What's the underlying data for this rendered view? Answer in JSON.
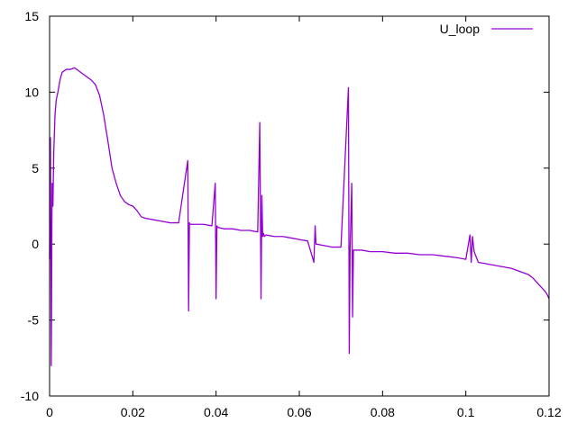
{
  "chart_data": {
    "type": "line",
    "title": "",
    "xlabel": "",
    "ylabel": "",
    "xlim": [
      0,
      0.12
    ],
    "ylim": [
      -10,
      15
    ],
    "xticks": [
      0,
      0.02,
      0.04,
      0.06,
      0.08,
      0.1,
      0.12
    ],
    "xtick_labels": [
      "0",
      "0.02",
      "0.04",
      "0.06",
      "0.08",
      "0.1",
      "0.12"
    ],
    "yticks": [
      -10,
      -5,
      0,
      5,
      10,
      15
    ],
    "ytick_labels": [
      "-10",
      "-5",
      "0",
      "5",
      "10",
      "15"
    ],
    "grid": false,
    "legend_position": "top-right",
    "series": [
      {
        "name": "U_loop",
        "color": "#9400d3",
        "x": [
          0,
          0.0002,
          0.0004,
          0.0006,
          0.0008,
          0.001,
          0.0013,
          0.0016,
          0.002,
          0.0025,
          0.003,
          0.004,
          0.005,
          0.006,
          0.007,
          0.008,
          0.009,
          0.01,
          0.011,
          0.012,
          0.013,
          0.014,
          0.015,
          0.016,
          0.017,
          0.018,
          0.019,
          0.02,
          0.021,
          0.022,
          0.023,
          0.025,
          0.027,
          0.029,
          0.031,
          0.0332,
          0.0334,
          0.0336,
          0.0338,
          0.035,
          0.037,
          0.039,
          0.0398,
          0.04,
          0.0402,
          0.0404,
          0.042,
          0.044,
          0.046,
          0.048,
          0.05,
          0.0505,
          0.0508,
          0.051,
          0.0512,
          0.0514,
          0.0516,
          0.052,
          0.054,
          0.056,
          0.058,
          0.06,
          0.062,
          0.0635,
          0.0638,
          0.064,
          0.066,
          0.068,
          0.07,
          0.0718,
          0.072,
          0.0722,
          0.0726,
          0.0728,
          0.073,
          0.075,
          0.077,
          0.08,
          0.083,
          0.086,
          0.089,
          0.092,
          0.095,
          0.098,
          0.1,
          0.101,
          0.1013,
          0.1016,
          0.102,
          0.103,
          0.105,
          0.107,
          0.109,
          0.111,
          0.113,
          0.115,
          0.116,
          0.117,
          0.118,
          0.119,
          0.1195,
          0.12
        ],
        "values": [
          -1,
          7,
          -8,
          4,
          2.5,
          6,
          8.5,
          9.5,
          10,
          10.8,
          11.3,
          11.5,
          11.5,
          11.6,
          11.4,
          11.2,
          11.0,
          10.8,
          10.5,
          9.8,
          8.5,
          6.8,
          5.0,
          4.0,
          3.2,
          2.8,
          2.6,
          2.5,
          2.2,
          1.8,
          1.7,
          1.6,
          1.5,
          1.4,
          1.4,
          5.5,
          -4.4,
          1.4,
          1.3,
          1.3,
          1.3,
          1.2,
          4.0,
          -3.6,
          1.2,
          1.1,
          1.0,
          1.0,
          0.9,
          0.9,
          0.8,
          8.0,
          -3.6,
          3.2,
          0.5,
          0.7,
          0.5,
          0.6,
          0.5,
          0.5,
          0.4,
          0.3,
          0.2,
          -1.2,
          1.2,
          0.0,
          -0.1,
          -0.2,
          -0.2,
          10.3,
          -7.2,
          -0.3,
          4.0,
          -4.8,
          -0.4,
          -0.4,
          -0.5,
          -0.5,
          -0.6,
          -0.6,
          -0.7,
          -0.7,
          -0.8,
          -0.9,
          -1.0,
          0.6,
          -1.2,
          0.5,
          -0.5,
          -1.2,
          -1.3,
          -1.4,
          -1.5,
          -1.6,
          -1.8,
          -2.0,
          -2.2,
          -2.5,
          -2.8,
          -3.1,
          -3.3,
          -3.6
        ]
      }
    ]
  }
}
